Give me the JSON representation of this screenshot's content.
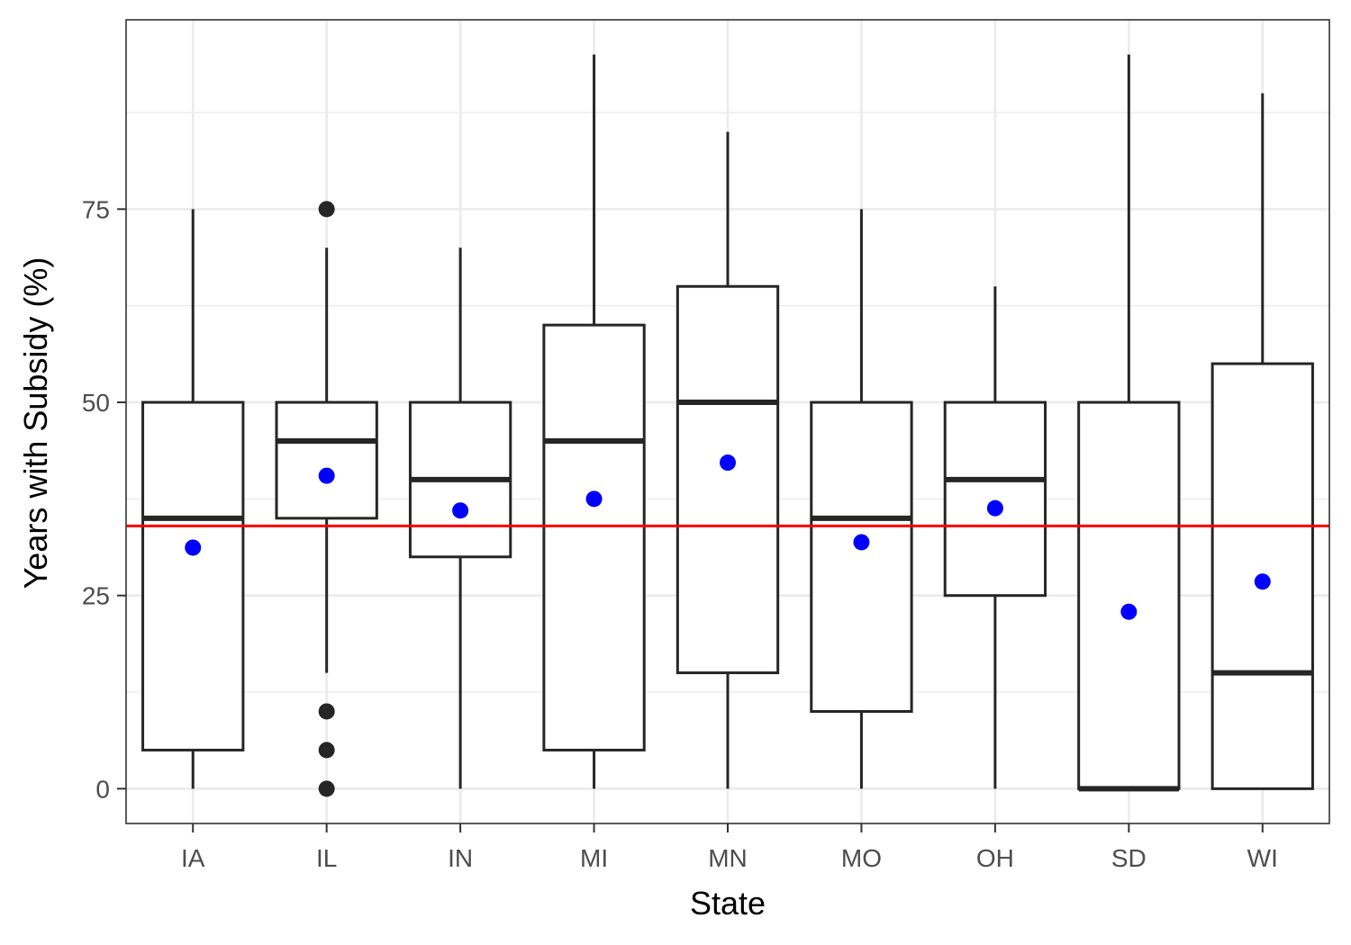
{
  "chart_data": {
    "type": "boxplot",
    "title": "",
    "xlabel": "State",
    "ylabel": "Years with Subsidy (%)",
    "ylim": [
      -4.5,
      99.5
    ],
    "y_ticks": [
      0,
      25,
      50,
      75
    ],
    "y_minor_ticks": [
      12.5,
      37.5,
      62.5,
      87.5
    ],
    "grid": true,
    "legend": "none",
    "categories": [
      "IA",
      "IL",
      "IN",
      "MI",
      "MN",
      "MO",
      "OH",
      "SD",
      "WI"
    ],
    "boxes": [
      {
        "category": "IA",
        "whisker_low": 0,
        "q1": 5,
        "median": 35,
        "q3": 50,
        "whisker_high": 75,
        "mean": 31.2,
        "outliers": []
      },
      {
        "category": "IL",
        "whisker_low": 15,
        "q1": 35,
        "median": 45,
        "q3": 50,
        "whisker_high": 70,
        "mean": 40.5,
        "outliers": [
          75,
          10,
          5,
          0
        ]
      },
      {
        "category": "IN",
        "whisker_low": 0,
        "q1": 30,
        "median": 40,
        "q3": 50,
        "whisker_high": 70,
        "mean": 36.0,
        "outliers": []
      },
      {
        "category": "MI",
        "whisker_low": 0,
        "q1": 5,
        "median": 45,
        "q3": 60,
        "whisker_high": 95,
        "mean": 37.5,
        "outliers": []
      },
      {
        "category": "MN",
        "whisker_low": 0,
        "q1": 15,
        "median": 50,
        "q3": 65,
        "whisker_high": 85,
        "mean": 42.2,
        "outliers": []
      },
      {
        "category": "MO",
        "whisker_low": 0,
        "q1": 10,
        "median": 35,
        "q3": 50,
        "whisker_high": 75,
        "mean": 31.9,
        "outliers": []
      },
      {
        "category": "OH",
        "whisker_low": 0,
        "q1": 25,
        "median": 40,
        "q3": 50,
        "whisker_high": 65,
        "mean": 36.3,
        "outliers": []
      },
      {
        "category": "SD",
        "whisker_low": 0,
        "q1": 0,
        "median": 0,
        "q3": 50,
        "whisker_high": 95,
        "mean": 22.9,
        "outliers": []
      },
      {
        "category": "WI",
        "whisker_low": 0,
        "q1": 0,
        "median": 15,
        "q3": 55,
        "whisker_high": 90,
        "mean": 26.8,
        "outliers": []
      }
    ],
    "reference_line": {
      "y": 34.0,
      "color": "#ff0000"
    },
    "colors": {
      "box_stroke": "#262626",
      "mean_point": "#0000ff",
      "outlier_point": "#262626",
      "grid": "#ebebeb",
      "panel_border": "#333333"
    }
  }
}
